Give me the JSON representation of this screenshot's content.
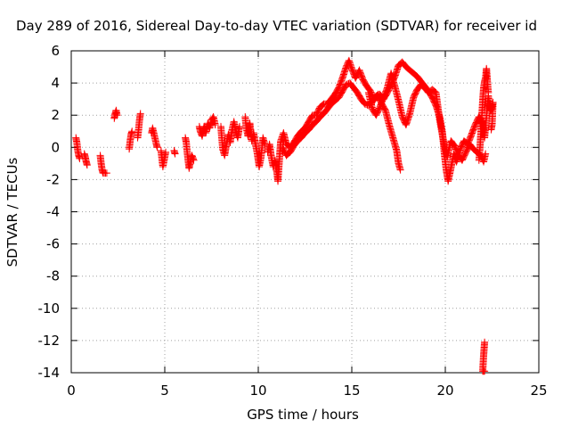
{
  "chart_data": {
    "type": "scatter",
    "title": "Day 289 of 2016, Sidereal Day-to-day VTEC variation (SDTVAR) for receiver id",
    "xlabel": "GPS time / hours",
    "ylabel": "SDTVAR / TECUs",
    "xlim": [
      0,
      25
    ],
    "ylim": [
      -14,
      6
    ],
    "x_ticks": [
      0,
      5,
      10,
      15,
      20,
      25
    ],
    "x_tick_labels": [
      "0",
      "5",
      "10",
      "15",
      "20",
      "25"
    ],
    "y_ticks": [
      -14,
      -12,
      -10,
      -8,
      -6,
      -4,
      -2,
      0,
      2,
      4,
      6
    ],
    "y_tick_labels": [
      "-14",
      "-12",
      "-10",
      "-8",
      "-6",
      "-4",
      "-2",
      "0",
      "2",
      "4",
      "6"
    ],
    "grid": true,
    "marker": "+",
    "series": [
      {
        "name": "SDTVAR",
        "color": "#ff0000",
        "segments": [
          [
            [
              0.25,
              0.6
            ],
            [
              0.3,
              0.3
            ],
            [
              0.35,
              -0.2
            ],
            [
              0.4,
              -0.5
            ],
            [
              0.45,
              -0.7
            ]
          ],
          [
            [
              0.7,
              -0.4
            ],
            [
              0.75,
              -0.6
            ],
            [
              0.8,
              -0.9
            ],
            [
              0.85,
              -1.1
            ]
          ],
          [
            [
              1.55,
              -0.5
            ],
            [
              1.6,
              -1.0
            ],
            [
              1.65,
              -1.4
            ],
            [
              1.7,
              -1.6
            ],
            [
              1.9,
              -1.6
            ]
          ],
          [
            [
              2.3,
              1.8
            ],
            [
              2.35,
              2.1
            ],
            [
              2.4,
              2.3
            ],
            [
              2.45,
              2.0
            ]
          ],
          [
            [
              3.1,
              -0.1
            ],
            [
              3.15,
              0.4
            ],
            [
              3.2,
              0.8
            ],
            [
              3.25,
              1.0
            ]
          ],
          [
            [
              3.55,
              0.6
            ],
            [
              3.6,
              1.1
            ],
            [
              3.65,
              1.7
            ],
            [
              3.7,
              2.1
            ]
          ],
          [
            [
              4.3,
              0.9
            ],
            [
              4.35,
              1.2
            ],
            [
              4.45,
              0.7
            ],
            [
              4.55,
              0.2
            ],
            [
              4.6,
              0.0
            ]
          ],
          [
            [
              4.8,
              -0.2
            ],
            [
              4.85,
              -0.7
            ],
            [
              4.9,
              -1.2
            ],
            [
              5.05,
              -0.3
            ]
          ],
          [
            [
              5.5,
              -0.2
            ],
            [
              5.55,
              -0.4
            ]
          ],
          [
            [
              6.1,
              0.6
            ],
            [
              6.15,
              0.3
            ],
            [
              6.2,
              -0.3
            ],
            [
              6.25,
              -0.8
            ],
            [
              6.3,
              -1.3
            ],
            [
              6.45,
              -0.5
            ],
            [
              6.55,
              -0.8
            ]
          ],
          [
            [
              6.85,
              1.3
            ],
            [
              6.9,
              1.0
            ],
            [
              7.0,
              0.7
            ],
            [
              7.1,
              1.3
            ],
            [
              7.2,
              0.9
            ],
            [
              7.3,
              1.5
            ],
            [
              7.4,
              1.2
            ],
            [
              7.5,
              1.7
            ],
            [
              7.6,
              1.9
            ],
            [
              7.7,
              1.4
            ]
          ],
          [
            [
              8.0,
              1.3
            ],
            [
              8.05,
              0.6
            ],
            [
              8.1,
              -0.1
            ],
            [
              8.2,
              -0.5
            ],
            [
              8.3,
              0.2
            ],
            [
              8.4,
              0.8
            ],
            [
              8.5,
              0.3
            ],
            [
              8.6,
              1.1
            ],
            [
              8.7,
              1.6
            ],
            [
              8.8,
              1.0
            ],
            [
              8.9,
              0.6
            ],
            [
              9.0,
              1.3
            ]
          ],
          [
            [
              9.3,
              1.9
            ],
            [
              9.35,
              1.3
            ],
            [
              9.45,
              0.7
            ],
            [
              9.55,
              1.5
            ],
            [
              9.65,
              0.4
            ],
            [
              9.75,
              0.9
            ],
            [
              9.85,
              0.2
            ],
            [
              9.95,
              -0.4
            ],
            [
              10.05,
              -1.2
            ],
            [
              10.15,
              -0.6
            ],
            [
              10.25,
              0.6
            ],
            [
              10.35,
              0.2
            ]
          ],
          [
            [
              10.5,
              -0.3
            ],
            [
              10.6,
              0.2
            ],
            [
              10.7,
              -0.6
            ],
            [
              10.8,
              -1.2
            ],
            [
              10.9,
              -0.8
            ],
            [
              11.0,
              -1.6
            ],
            [
              11.05,
              -2.1
            ],
            [
              11.15,
              -0.4
            ],
            [
              11.2,
              0.4
            ],
            [
              11.35,
              0.9
            ],
            [
              11.5,
              0.2
            ],
            [
              11.7,
              0.0
            ],
            [
              11.9,
              0.3
            ],
            [
              12.1,
              0.7
            ],
            [
              12.3,
              1.0
            ],
            [
              12.5,
              1.2
            ],
            [
              12.7,
              1.6
            ],
            [
              12.9,
              2.0
            ],
            [
              13.1,
              2.0
            ],
            [
              13.3,
              2.5
            ],
            [
              13.5,
              2.7
            ],
            [
              13.7,
              2.7
            ],
            [
              13.9,
              3.0
            ],
            [
              14.1,
              3.3
            ],
            [
              14.3,
              3.7
            ],
            [
              14.5,
              4.3
            ],
            [
              14.7,
              5.0
            ],
            [
              14.85,
              5.4
            ],
            [
              15.0,
              4.9
            ],
            [
              15.2,
              4.3
            ],
            [
              15.4,
              4.8
            ],
            [
              15.6,
              4.2
            ],
            [
              15.8,
              3.8
            ],
            [
              16.0,
              3.5
            ],
            [
              16.2,
              2.9
            ],
            [
              16.4,
              3.3
            ],
            [
              16.6,
              2.7
            ],
            [
              16.8,
              2.3
            ],
            [
              17.0,
              1.4
            ],
            [
              17.2,
              0.6
            ],
            [
              17.4,
              -0.2
            ],
            [
              17.5,
              -1.0
            ],
            [
              17.6,
              -1.4
            ]
          ],
          [
            [
              11.3,
              0.0
            ],
            [
              11.5,
              -0.5
            ],
            [
              11.7,
              -0.3
            ],
            [
              11.9,
              0.1
            ],
            [
              12.1,
              0.4
            ],
            [
              12.3,
              0.6
            ],
            [
              12.5,
              0.9
            ],
            [
              12.7,
              1.1
            ],
            [
              12.9,
              1.4
            ],
            [
              13.1,
              1.6
            ],
            [
              13.3,
              1.9
            ],
            [
              13.5,
              2.1
            ],
            [
              13.7,
              2.4
            ],
            [
              13.9,
              2.7
            ],
            [
              14.1,
              2.9
            ],
            [
              14.3,
              3.1
            ],
            [
              14.5,
              3.5
            ],
            [
              14.7,
              3.9
            ],
            [
              14.9,
              4.0
            ],
            [
              15.1,
              3.7
            ],
            [
              15.3,
              3.4
            ],
            [
              15.5,
              3.0
            ],
            [
              15.7,
              2.7
            ],
            [
              15.9,
              2.6
            ],
            [
              16.1,
              2.9
            ],
            [
              16.3,
              3.2
            ],
            [
              16.5,
              3.3
            ],
            [
              16.7,
              3.0
            ],
            [
              16.9,
              3.4
            ],
            [
              17.1,
              3.9
            ],
            [
              17.3,
              4.4
            ],
            [
              17.5,
              5.1
            ],
            [
              17.7,
              5.3
            ],
            [
              17.9,
              5.0
            ],
            [
              18.1,
              4.8
            ],
            [
              18.3,
              4.6
            ],
            [
              18.5,
              4.4
            ],
            [
              18.7,
              4.1
            ],
            [
              18.9,
              3.8
            ],
            [
              19.1,
              3.5
            ],
            [
              19.3,
              3.1
            ],
            [
              19.5,
              2.6
            ],
            [
              19.7,
              1.9
            ],
            [
              19.85,
              0.9
            ],
            [
              19.95,
              -0.4
            ],
            [
              20.05,
              -1.4
            ],
            [
              20.15,
              -2.1
            ],
            [
              20.3,
              -1.3
            ],
            [
              20.45,
              -0.4
            ],
            [
              20.6,
              -0.9
            ],
            [
              20.8,
              -0.1
            ],
            [
              21.0,
              0.4
            ],
            [
              21.2,
              0.2
            ],
            [
              21.4,
              0.8
            ],
            [
              21.6,
              1.4
            ],
            [
              21.8,
              1.9
            ],
            [
              22.0,
              1.6
            ],
            [
              22.1,
              0.6
            ],
            [
              22.2,
              1.9
            ],
            [
              22.3,
              3.2
            ],
            [
              22.35,
              2.7
            ],
            [
              22.4,
              2.3
            ]
          ],
          [
            [
              15.9,
              3.4
            ],
            [
              16.1,
              2.4
            ],
            [
              16.3,
              2.0
            ],
            [
              16.5,
              2.5
            ],
            [
              16.7,
              3.1
            ],
            [
              16.9,
              3.7
            ],
            [
              17.1,
              4.6
            ],
            [
              17.3,
              3.8
            ],
            [
              17.5,
              2.9
            ],
            [
              17.7,
              1.9
            ],
            [
              17.9,
              1.4
            ],
            [
              18.1,
              2.1
            ],
            [
              18.3,
              3.1
            ],
            [
              18.5,
              3.6
            ],
            [
              18.7,
              3.9
            ],
            [
              18.9,
              3.7
            ],
            [
              19.1,
              3.4
            ],
            [
              19.3,
              3.6
            ],
            [
              19.5,
              3.4
            ],
            [
              19.7,
              1.7
            ],
            [
              19.9,
              0.4
            ],
            [
              20.1,
              -0.6
            ],
            [
              20.3,
              0.4
            ],
            [
              20.5,
              0.1
            ],
            [
              20.7,
              -0.5
            ],
            [
              20.9,
              -0.8
            ],
            [
              21.1,
              -0.3
            ],
            [
              21.3,
              0.2
            ],
            [
              21.5,
              -0.1
            ],
            [
              21.7,
              -0.3
            ],
            [
              21.9,
              -0.5
            ],
            [
              22.05,
              -0.9
            ],
            [
              22.15,
              -0.4
            ]
          ],
          [
            [
              21.8,
              -0.8
            ],
            [
              21.85,
              -0.1
            ],
            [
              21.9,
              0.9
            ],
            [
              21.95,
              1.9
            ],
            [
              22.0,
              2.9
            ],
            [
              22.05,
              3.7
            ],
            [
              22.1,
              4.1
            ],
            [
              22.15,
              4.3
            ],
            [
              22.2,
              4.9
            ],
            [
              22.25,
              4.1
            ],
            [
              22.3,
              3.4
            ]
          ],
          [
            [
              22.4,
              2.7
            ],
            [
              22.45,
              2.3
            ],
            [
              22.5,
              2.5
            ],
            [
              22.55,
              2.8
            ],
            [
              22.5,
              1.4
            ],
            [
              22.45,
              1.1
            ]
          ],
          [
            [
              22.1,
              -12.1
            ],
            [
              22.05,
              -12.9
            ],
            [
              22.0,
              -13.9
            ],
            [
              22.1,
              -13.9
            ]
          ]
        ]
      }
    ]
  }
}
